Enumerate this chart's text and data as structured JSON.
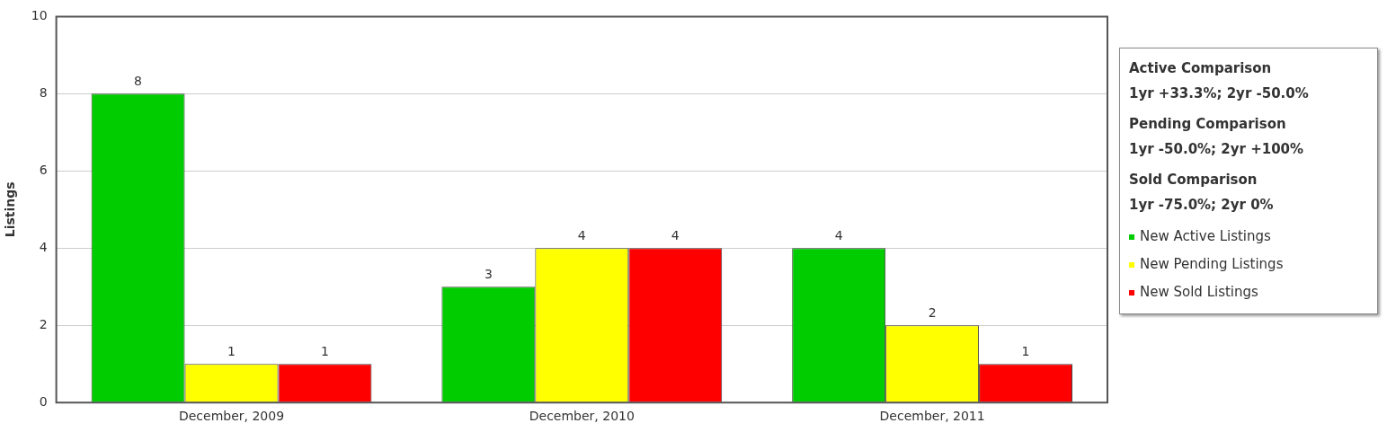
{
  "chart_data": {
    "type": "bar",
    "ylabel": "Listings",
    "categories": [
      "December, 2009",
      "December, 2010",
      "December, 2011"
    ],
    "series": [
      {
        "name": "New Active Listings",
        "color": "#00cc00",
        "values": [
          8,
          3,
          4
        ]
      },
      {
        "name": "New Pending Listings",
        "color": "#ffff00",
        "values": [
          1,
          4,
          2
        ]
      },
      {
        "name": "New Sold Listings",
        "color": "#ff0000",
        "values": [
          1,
          4,
          1
        ]
      }
    ],
    "ylim": [
      0,
      10
    ],
    "yticks": [
      0,
      2,
      4,
      6,
      8,
      10
    ],
    "grid": "y",
    "legend": "right",
    "data_labels": true,
    "annotations": [
      "Active Comparison",
      "1yr +33.3%; 2yr -50.0%",
      "Pending Comparison",
      "1yr -50.0%; 2yr +100%",
      "Sold Comparison",
      "1yr -75.0%; 2yr 0%"
    ]
  }
}
